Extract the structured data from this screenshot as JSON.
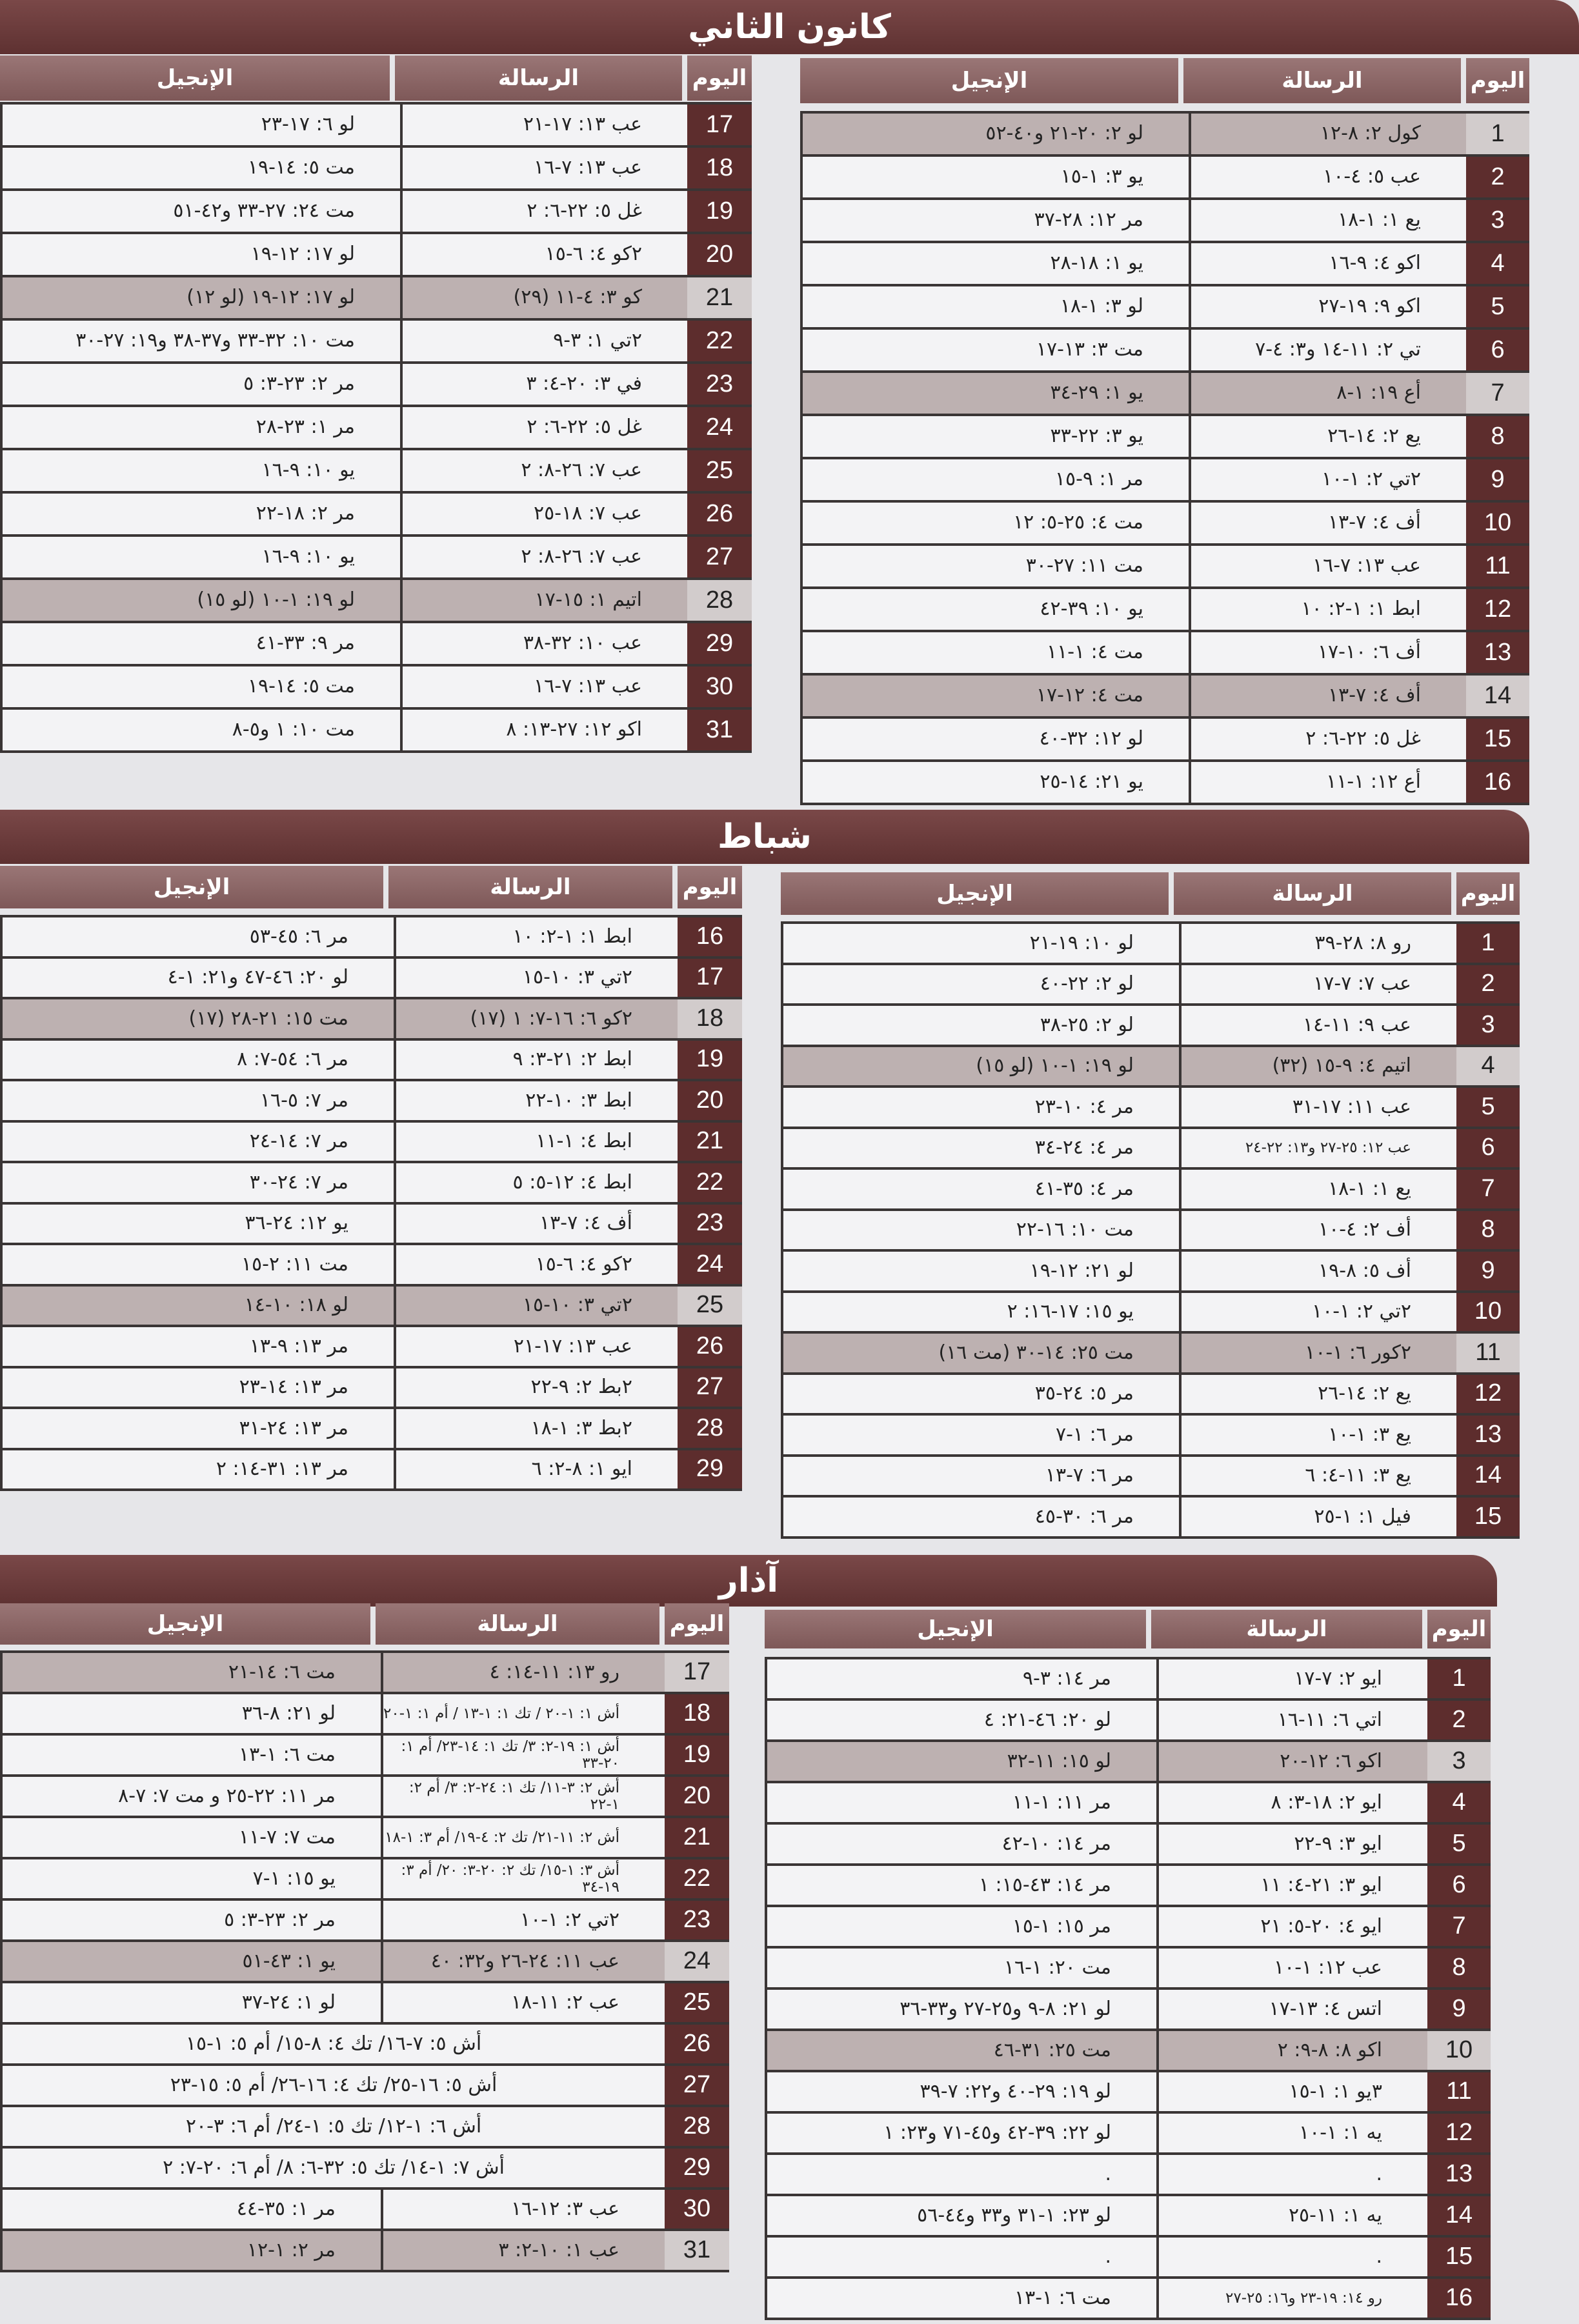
{
  "months": [
    {
      "title": "كانون الثاني",
      "headers": {
        "day": "اليوم",
        "epistle": "الرسالة",
        "gospel": "الإنجيل"
      },
      "tables": [
        {
          "rows": [
            {
              "day": "1",
              "epistle": "كول ٢: ٨-١٢",
              "gospel": "لو ٢: ٢٠-٢١ و٤٠-٥٢",
              "highlighted": true
            },
            {
              "day": "2",
              "epistle": "عب ٥: ٤-١٠",
              "gospel": "يو ٣: ١-١٥"
            },
            {
              "day": "3",
              "epistle": "يع ١: ١-١٨",
              "gospel": "مر ١٢: ٢٨-٣٧"
            },
            {
              "day": "4",
              "epistle": "اكو ٤: ٩-١٦",
              "gospel": "يو ١: ١٨-٢٨"
            },
            {
              "day": "5",
              "epistle": "اكو ٩: ١٩-٢٧",
              "gospel": "لو ٣: ١-١٨"
            },
            {
              "day": "6",
              "epistle": "تي ٢: ١١-١٤ و٣: ٤-٧",
              "gospel": "مت ٣: ١٣-١٧"
            },
            {
              "day": "7",
              "epistle": "أع ١٩: ١-٨",
              "gospel": "يو ١: ٢٩-٣٤",
              "highlighted": true
            },
            {
              "day": "8",
              "epistle": "يع ٢: ١٤-٢٦",
              "gospel": "يو ٣: ٢٢-٣٣"
            },
            {
              "day": "9",
              "epistle": "٢تي ٢: ١-١٠",
              "gospel": "مر ١: ٩-١٥"
            },
            {
              "day": "10",
              "epistle": "أف ٤: ٧-١٣",
              "gospel": "مت ٤: ٢٥-٥: ١٢"
            },
            {
              "day": "11",
              "epistle": "عب ١٣: ٧-١٦",
              "gospel": "مت ١١: ٢٧-٣٠"
            },
            {
              "day": "12",
              "epistle": "ابط ١: ١-٢: ١٠",
              "gospel": "يو ١٠: ٣٩-٤٢"
            },
            {
              "day": "13",
              "epistle": "أف ٦: ١٠-١٧",
              "gospel": "مت ٤: ١-١١"
            },
            {
              "day": "14",
              "epistle": "أف ٤: ٧-١٣",
              "gospel": "مت ٤: ١٢-١٧",
              "highlighted": true
            },
            {
              "day": "15",
              "epistle": "غل ٥: ٢٢-٦: ٢",
              "gospel": "لو ١٢: ٣٢-٤٠"
            },
            {
              "day": "16",
              "epistle": "أع ١٢: ١-١١",
              "gospel": "يو ٢١: ١٤-٢٥"
            }
          ]
        },
        {
          "rows": [
            {
              "day": "17",
              "epistle": "عب ١٣: ١٧-٢١",
              "gospel": "لو ٦: ١٧-٢٣"
            },
            {
              "day": "18",
              "epistle": "عب ١٣: ٧-١٦",
              "gospel": "مت ٥: ١٤-١٩"
            },
            {
              "day": "19",
              "epistle": "غل ٥: ٢٢-٦: ٢",
              "gospel": "مت ٢٤: ٢٧-٣٣ و٤٢-٥١"
            },
            {
              "day": "20",
              "epistle": "٢كو ٤: ٦-١٥",
              "gospel": "لو ١٧: ١٢-١٩"
            },
            {
              "day": "21",
              "epistle": "كو ٣: ٤-١١ (٢٩)",
              "gospel": "لو ١٧: ١٢-١٩ (لو ١٢)",
              "highlighted": true
            },
            {
              "day": "22",
              "epistle": "٢تي ١: ٣-٩",
              "gospel": "مت ١٠: ٣٢-٣٣ و٣٧-٣٨ و١٩: ٢٧-٣٠"
            },
            {
              "day": "23",
              "epistle": "في ٣: ٢٠-٤: ٣",
              "gospel": "مر ٢: ٢٣-٣: ٥"
            },
            {
              "day": "24",
              "epistle": "غل ٥: ٢٢-٦: ٢",
              "gospel": "مر ١: ٢٣-٢٨"
            },
            {
              "day": "25",
              "epistle": "عب ٧: ٢٦-٨: ٢",
              "gospel": "يو ١٠: ٩-١٦"
            },
            {
              "day": "26",
              "epistle": "عب ٧: ١٨-٢٥",
              "gospel": "مر ٢: ١٨-٢٢"
            },
            {
              "day": "27",
              "epistle": "عب ٧: ٢٦-٨: ٢",
              "gospel": "يو ١٠: ٩-١٦"
            },
            {
              "day": "28",
              "epistle": "اتيم ١: ١٥-١٧",
              "gospel": "لو ١٩: ١-١٠ (لو ١٥)",
              "highlighted": true
            },
            {
              "day": "29",
              "epistle": "عب ١٠: ٣٢-٣٨",
              "gospel": "مر ٩: ٣٣-٤١"
            },
            {
              "day": "30",
              "epistle": "عب ١٣: ٧-١٦",
              "gospel": "مت ٥: ١٤-١٩"
            },
            {
              "day": "31",
              "epistle": "اكو ١٢: ٢٧-١٣: ٨",
              "gospel": "مت ١٠: ١ و٥-٨"
            }
          ]
        }
      ]
    },
    {
      "title": "شباط",
      "headers": {
        "day": "اليوم",
        "epistle": "الرسالة",
        "gospel": "الإنجيل"
      },
      "tables": [
        {
          "rows": [
            {
              "day": "1",
              "epistle": "رو ٨: ٢٨-٣٩",
              "gospel": "لو ١٠: ١٩-٢١"
            },
            {
              "day": "2",
              "epistle": "عب ٧: ٧-١٧",
              "gospel": "لو ٢: ٢٢-٤٠"
            },
            {
              "day": "3",
              "epistle": "عب ٩: ١١-١٤",
              "gospel": "لو ٢: ٢٥-٣٨"
            },
            {
              "day": "4",
              "epistle": "اتيم ٤: ٩-١٥ (٣٢)",
              "gospel": "لو ١٩: ١-١٠ (لو ١٥)",
              "highlighted": true
            },
            {
              "day": "5",
              "epistle": "عب ١١: ١٧-٣١",
              "gospel": "مر ٤: ١٠-٢٣"
            },
            {
              "day": "6",
              "epistle": "عب ١٢: ٢٥-٢٧ و١٣: ٢٢-٢٤",
              "gospel": "مر ٤: ٢٤-٣٤",
              "small": true
            },
            {
              "day": "7",
              "epistle": "يع ١: ١-١٨",
              "gospel": "مر ٤: ٣٥-٤١"
            },
            {
              "day": "8",
              "epistle": "أف ٢: ٤-١٠",
              "gospel": "مت ١٠: ١٦-٢٢"
            },
            {
              "day": "9",
              "epistle": "أف ٥: ٨-١٩",
              "gospel": "لو ٢١: ١٢-١٩"
            },
            {
              "day": "10",
              "epistle": "٢تي ٢: ١-١٠",
              "gospel": "يو ١٥: ١٧-١٦: ٢"
            },
            {
              "day": "11",
              "epistle": "٢كور ٦: ١-١٠",
              "gospel": "مت ٢٥: ١٤-٣٠ (مت ١٦)",
              "highlighted": true
            },
            {
              "day": "12",
              "epistle": "يع ٢: ١٤-٢٦",
              "gospel": "مر ٥: ٢٤-٣٥"
            },
            {
              "day": "13",
              "epistle": "يع ٣: ١-١٠",
              "gospel": "مر ٦: ١-٧"
            },
            {
              "day": "14",
              "epistle": "يع ٣: ١١-٤: ٦",
              "gospel": "مر ٦: ٧-١٣"
            },
            {
              "day": "15",
              "epistle": "فيل ١: ١-٢٥",
              "gospel": "مر ٦: ٣٠-٤٥"
            }
          ]
        },
        {
          "rows": [
            {
              "day": "16",
              "epistle": "ابط ١: ١-٢: ١٠",
              "gospel": "مر ٦: ٤٥-٥٣"
            },
            {
              "day": "17",
              "epistle": "٢تي ٣: ١٠-١٥",
              "gospel": "لو ٢٠: ٤٦-٤٧ و٢١: ١-٤"
            },
            {
              "day": "18",
              "epistle": "٢كو ٦: ١٦-٧: ١ (١٧)",
              "gospel": "مت ١٥: ٢١-٢٨ (١٧)",
              "highlighted": true
            },
            {
              "day": "19",
              "epistle": "ابط ٢: ٢١-٣: ٩",
              "gospel": "مر ٦: ٥٤-٧: ٨"
            },
            {
              "day": "20",
              "epistle": "ابط ٣: ١٠-٢٢",
              "gospel": "مر ٧: ٥-١٦"
            },
            {
              "day": "21",
              "epistle": "ابط ٤: ١-١١",
              "gospel": "مر ٧: ١٤-٢٤"
            },
            {
              "day": "22",
              "epistle": "ابط ٤: ١٢-٥: ٥",
              "gospel": "مر ٧: ٢٤-٣٠"
            },
            {
              "day": "23",
              "epistle": "أف ٤: ٧-١٣",
              "gospel": "يو ١٢: ٢٤-٣٦"
            },
            {
              "day": "24",
              "epistle": "٢كو ٤: ٦-١٥",
              "gospel": "مت ١١: ٢-١٥"
            },
            {
              "day": "25",
              "epistle": "٢تي ٣: ١٠-١٥",
              "gospel": "لو ١٨: ١٠-١٤",
              "highlighted": true
            },
            {
              "day": "26",
              "epistle": "عب ١٣: ١٧-٢١",
              "gospel": "مر ١٣: ٩-١٣"
            },
            {
              "day": "27",
              "epistle": "٢بط ٢: ٩-٢٢",
              "gospel": "مر ١٣: ١٤-٢٣"
            },
            {
              "day": "28",
              "epistle": "٢بط ٣: ١-١٨",
              "gospel": "مر ١٣: ٢٤-٣١"
            },
            {
              "day": "29",
              "epistle": "ايو ١: ٨-٢: ٦",
              "gospel": "مر ١٣: ٣١-١٤: ٢"
            }
          ]
        }
      ]
    },
    {
      "title": "آذار",
      "headers": {
        "day": "اليوم",
        "epistle": "الرسالة",
        "gospel": "الإنجيل"
      },
      "tables": [
        {
          "rows": [
            {
              "day": "1",
              "epistle": "ايو ٢: ٧-١٧",
              "gospel": "مر ١٤: ٣-٩"
            },
            {
              "day": "2",
              "epistle": "اتي ٦: ١١-١٦",
              "gospel": "لو ٢٠: ٤٦-٢١: ٤"
            },
            {
              "day": "3",
              "epistle": "اكو ٦: ١٢-٢٠",
              "gospel": "لو ١٥: ١١-٣٢",
              "highlighted": true
            },
            {
              "day": "4",
              "epistle": "ايو ٢: ١٨-٣: ٨",
              "gospel": "مر ١١: ١-١١"
            },
            {
              "day": "5",
              "epistle": "ايو ٣: ٩-٢٢",
              "gospel": "مر ١٤: ١٠-٤٢"
            },
            {
              "day": "6",
              "epistle": "ايو ٣: ٢١-٤: ١١",
              "gospel": "مر ١٤: ٤٣-١٥: ١"
            },
            {
              "day": "7",
              "epistle": "ايو ٤: ٢٠-٥: ٢١",
              "gospel": "مر ١٥: ١-١٥"
            },
            {
              "day": "8",
              "epistle": "عب ١٢: ١-١٠",
              "gospel": "مت ٢٠: ١-١٦"
            },
            {
              "day": "9",
              "epistle": "اتس ٤: ١٣-١٧",
              "gospel": "لو ٢١: ٨-٩ و٢٥-٢٧ و٣٣-٣٦"
            },
            {
              "day": "10",
              "epistle": "اكو ٨: ٨-٩: ٢",
              "gospel": "مت ٢٥: ٣١-٤٦",
              "highlighted": true
            },
            {
              "day": "11",
              "epistle": "٣يو ١: ١-١٥",
              "gospel": "لو ١٩: ٢٩-٤٠ و٢٢: ٧-٣٩"
            },
            {
              "day": "12",
              "epistle": "يه ١: ١-١٠",
              "gospel": "لو ٢٢: ٣٩-٤٢ و٤٥-٧١ و٢٣: ١"
            },
            {
              "day": "13",
              "epistle": ".",
              "gospel": "."
            },
            {
              "day": "14",
              "epistle": "يه ١: ١١-٢٥",
              "gospel": "لو ٢٣: ١-٣١ و٣٣ و٤٤-٥٦"
            },
            {
              "day": "15",
              "epistle": ".",
              "gospel": "."
            },
            {
              "day": "16",
              "epistle": "رو ١٤: ١٩-٢٣ و١٦: ٢٥-٢٧",
              "gospel": "مت ٦: ١-١٣",
              "small": true
            }
          ]
        },
        {
          "rows": [
            {
              "day": "17",
              "epistle": "رو ١٣: ١١-١٤: ٤",
              "gospel": "مت ٦: ١٤-٢١",
              "highlighted": true
            },
            {
              "day": "18",
              "epistle": "أش ١: ١-٢٠ / تك ١: ١-١٣ / أم ١: ١-٢٠",
              "gospel": "لو ٢١: ٨-٣٦",
              "small": true
            },
            {
              "day": "19",
              "epistle": "أش ١: ١٩-٢: ٣/ تك ١: ١٤-٢٣/ أم ١: ٢٠-٣٣",
              "gospel": "مت ٦: ١-١٣",
              "small": true
            },
            {
              "day": "20",
              "epistle": "أش ٢: ٣-١١/ تك ١: ٢٤-٢: ٣/ أم ٢: ١-٢٢",
              "gospel": "مر ١١: ٢٢-٢٥ و مت ٧: ٧-٨",
              "small": true
            },
            {
              "day": "21",
              "epistle": "أش ٢: ١١-٢١/ تك ٢: ٤-١٩/ أم ٣: ١-١٨",
              "gospel": "مت ٧: ٧-١١",
              "small": true
            },
            {
              "day": "22",
              "epistle": "أش ٣: ١-١٥/ تك ٢: ٢٠-٣: ٢٠/ أم ٣: ١٩-٣٤",
              "gospel": "يو ١٥: ١-٧",
              "small": true
            },
            {
              "day": "23",
              "epistle": "٢تي ٢: ١-١٠",
              "gospel": "مر ٢: ٢٣-٣: ٥"
            },
            {
              "day": "24",
              "epistle": "عب ١١: ٢٤-٢٦ و٣٢: ٤٠",
              "gospel": "يو ١: ٤٣-٥١",
              "highlighted": true
            },
            {
              "day": "25",
              "epistle": "عب ٢: ١١-١٨",
              "gospel": "لو ١: ٢٤-٣٧"
            },
            {
              "day": "26",
              "combined": "أش ٥: ٧-١٦/ تك ٤: ٨-١٥/ أم ٥: ١-١٥"
            },
            {
              "day": "27",
              "combined": "أش ٥: ١٦-٢٥/ تك ٤: ١٦-٢٦/ أم ٥: ١٥-٢٣"
            },
            {
              "day": "28",
              "combined": "أش ٦: ١-١٢/ تك ٥: ١-٢٤/ أم ٦: ٣-٢٠"
            },
            {
              "day": "29",
              "combined": "أش ٧: ١-١٤/ تك ٥: ٣٢-٦: ٨/ أم ٦: ٢٠-٧: ٢"
            },
            {
              "day": "30",
              "epistle": "عب ٣: ١٢-١٦",
              "gospel": "مر ١: ٣٥-٤٤"
            },
            {
              "day": "31",
              "epistle": "عب ١: ١٠-٢: ٣",
              "gospel": "مر ٢: ١-١٢",
              "highlighted": true
            }
          ]
        }
      ]
    }
  ]
}
